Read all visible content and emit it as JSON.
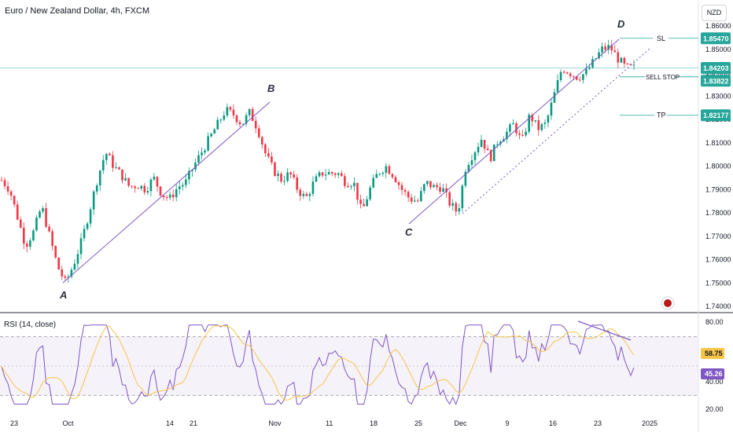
{
  "header": {
    "title": "Euro / New Zealand Dollar, 4h, FXCM",
    "currency": "NZD"
  },
  "colors": {
    "up": "#089981",
    "down": "#f23645",
    "rsi": "#7e57c2",
    "rsi_ma": "#f7c548",
    "rsi_band": "#ede7f6",
    "price_line": "#26a69a",
    "channel": "#7e57c2"
  },
  "price_axis": {
    "ticks": [
      "1.86000",
      "1.85000",
      "1.84000",
      "1.83000",
      "1.82000",
      "1.81000",
      "1.80000",
      "1.79000",
      "1.78000",
      "1.77000",
      "1.76000",
      "1.75000",
      "1.74000"
    ]
  },
  "price_labels": {
    "sl": "1.85470",
    "current": "1.84203",
    "sell_stop": "1.83822",
    "tp": "1.82177"
  },
  "annotations": {
    "sl": "SL",
    "sell_stop": "SELL STOP",
    "tp": "TP",
    "points": [
      "A",
      "B",
      "C",
      "D"
    ]
  },
  "rsi": {
    "title": "RSI (14, close)",
    "ticks": [
      "80.00",
      "40.00",
      "20.00"
    ],
    "value_ma": "58.75",
    "value": "45.26"
  },
  "time_axis": [
    "23",
    "Oct",
    "14",
    "21",
    "Nov",
    "11",
    "18",
    "25",
    "Dec",
    "9",
    "16",
    "23",
    "2025"
  ],
  "chart_data": {
    "type": "candlestick",
    "symbol": "EURNZD",
    "timeframe": "4h",
    "ylim": [
      1.735,
      1.865
    ],
    "swing_points": [
      {
        "label": "A",
        "price": 1.749
      },
      {
        "label": "B",
        "price": 1.827
      },
      {
        "label": "C",
        "price": 1.774
      },
      {
        "label": "D",
        "price": 1.855
      }
    ],
    "levels": [
      {
        "name": "SL",
        "price": 1.8547
      },
      {
        "name": "SELL STOP",
        "price": 1.83822
      },
      {
        "name": "TP",
        "price": 1.82177
      },
      {
        "name": "current",
        "price": 1.84203
      }
    ],
    "rsi": {
      "ylim": [
        20,
        80
      ],
      "overbought": 70,
      "oversold": 30,
      "last": 45.26,
      "ma_last": 58.75
    },
    "path": [
      1.794,
      1.79,
      1.778,
      1.766,
      1.772,
      1.783,
      1.77,
      1.757,
      1.75,
      1.758,
      1.768,
      1.781,
      1.795,
      1.806,
      1.8,
      1.796,
      1.791,
      1.792,
      1.79,
      1.795,
      1.788,
      1.786,
      1.791,
      1.793,
      1.8,
      1.806,
      1.812,
      1.818,
      1.824,
      1.822,
      1.818,
      1.823,
      1.816,
      1.805,
      1.798,
      1.794,
      1.797,
      1.79,
      1.786,
      1.793,
      1.797,
      1.797,
      1.797,
      1.793,
      1.793,
      1.78,
      1.79,
      1.797,
      1.8,
      1.796,
      1.79,
      1.786,
      1.785,
      1.793,
      1.791,
      1.791,
      1.784,
      1.78,
      1.8,
      1.806,
      1.812,
      1.803,
      1.811,
      1.814,
      1.818,
      1.81,
      1.822,
      1.816,
      1.818,
      1.83,
      1.842,
      1.84,
      1.838,
      1.84,
      1.845,
      1.85,
      1.851,
      1.846,
      1.842,
      1.842
    ]
  }
}
